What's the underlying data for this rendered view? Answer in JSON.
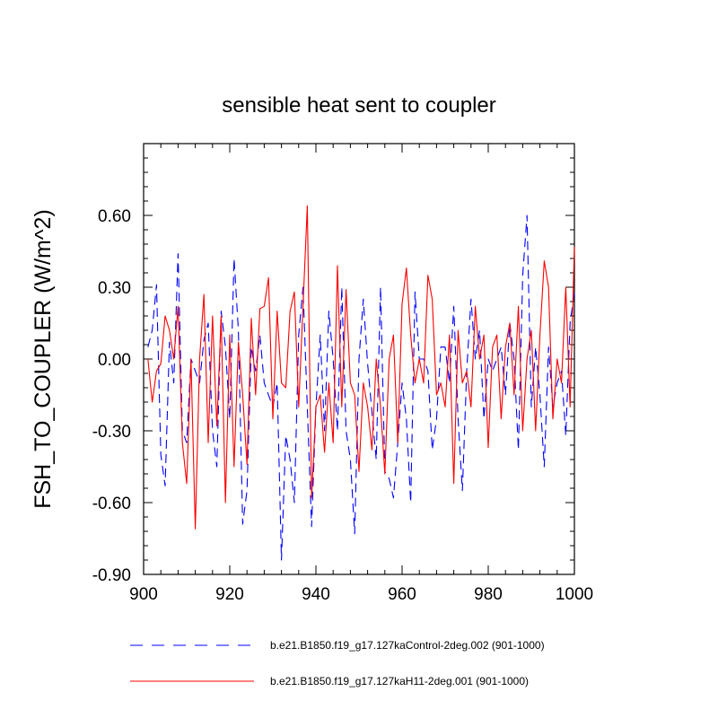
{
  "chart_data": {
    "type": "line",
    "title": "sensible heat sent to coupler",
    "xlabel": "",
    "ylabel": "FSH_TO_COUPLER  (W/m^2)",
    "xlim": [
      900,
      1000
    ],
    "ylim": [
      -0.9,
      0.9
    ],
    "xticks": [
      900,
      920,
      940,
      960,
      980,
      1000
    ],
    "xtick_labels": [
      "900",
      "920",
      "940",
      "960",
      "980",
      "1000"
    ],
    "yticks": [
      -0.9,
      -0.6,
      -0.3,
      0.0,
      0.3,
      0.6
    ],
    "ytick_labels": [
      "-0.90",
      "-0.60",
      "-0.30",
      "0.00",
      "0.30",
      "0.60"
    ],
    "grid": false,
    "legend_position": "bottom",
    "series": [
      {
        "name": "b.e21.B1850.f19_g17.127kaControl-2deg.002 (901-1000)",
        "color": "#0000ff",
        "dash": "dashed",
        "x": [
          901,
          902,
          903,
          904,
          905,
          906,
          907,
          908,
          909,
          910,
          911,
          912,
          913,
          914,
          915,
          916,
          917,
          918,
          919,
          920,
          921,
          922,
          923,
          924,
          925,
          926,
          927,
          928,
          929,
          930,
          931,
          932,
          933,
          934,
          935,
          936,
          937,
          938,
          939,
          940,
          941,
          942,
          943,
          944,
          945,
          946,
          947,
          948,
          949,
          950,
          951,
          952,
          953,
          954,
          955,
          956,
          957,
          958,
          959,
          960,
          961,
          962,
          963,
          964,
          965,
          966,
          967,
          968,
          969,
          970,
          971,
          972,
          973,
          974,
          975,
          976,
          977,
          978,
          979,
          980,
          981,
          982,
          983,
          984,
          985,
          986,
          987,
          988,
          989,
          990,
          991,
          992,
          993,
          994,
          995,
          996,
          997,
          998,
          999,
          1000
        ],
        "values": [
          0.05,
          0.12,
          0.31,
          -0.4,
          -0.53,
          0.07,
          -0.1,
          0.44,
          -0.3,
          -0.35,
          0.0,
          -0.05,
          -0.1,
          0.08,
          0.15,
          -0.3,
          -0.45,
          0.2,
          0.05,
          -0.25,
          0.42,
          0.12,
          -0.69,
          -0.55,
          0.05,
          -0.05,
          0.1,
          -0.1,
          -0.15,
          -0.2,
          -0.1,
          -0.84,
          -0.32,
          -0.42,
          -0.6,
          0.1,
          0.3,
          -0.2,
          -0.7,
          -0.2,
          0.1,
          -0.3,
          0.2,
          0.0,
          -0.3,
          0.3,
          -0.3,
          -0.42,
          -0.73,
          0.0,
          0.25,
          -0.02,
          -0.22,
          -0.42,
          0.3,
          -0.47,
          -0.5,
          -0.58,
          -0.35,
          -0.1,
          -0.25,
          -0.6,
          0.28,
          0.0,
          0.0,
          -0.05,
          -0.38,
          -0.25,
          0.05,
          0.05,
          -0.1,
          0.22,
          -0.25,
          -0.55,
          -0.05,
          0.25,
          0.0,
          0.12,
          -0.25,
          0.0,
          -0.05,
          0.0,
          0.05,
          -0.15,
          0.15,
          0.0,
          -0.38,
          0.35,
          0.6,
          -0.2,
          0.05,
          -0.15,
          -0.45,
          0.05,
          -0.2,
          -0.1,
          -0.05,
          -0.32,
          0.15,
          0.28
        ]
      },
      {
        "name": "b.e21.B1850.f19_g17.127kaH11-2deg.001 (901-1000)",
        "color": "#ff0000",
        "dash": "solid",
        "x": [
          901,
          902,
          903,
          904,
          905,
          906,
          907,
          908,
          909,
          910,
          911,
          912,
          913,
          914,
          915,
          916,
          917,
          918,
          919,
          920,
          921,
          922,
          923,
          924,
          925,
          926,
          927,
          928,
          929,
          930,
          931,
          932,
          933,
          934,
          935,
          936,
          937,
          938,
          939,
          940,
          941,
          942,
          943,
          944,
          945,
          946,
          947,
          948,
          949,
          950,
          951,
          952,
          953,
          954,
          955,
          956,
          957,
          958,
          959,
          960,
          961,
          962,
          963,
          964,
          965,
          966,
          967,
          968,
          969,
          970,
          971,
          972,
          973,
          974,
          975,
          976,
          977,
          978,
          979,
          980,
          981,
          982,
          983,
          984,
          985,
          986,
          987,
          988,
          989,
          990,
          991,
          992,
          993,
          994,
          995,
          996,
          997,
          998,
          999,
          1000
        ],
        "values": [
          0.0,
          -0.18,
          -0.05,
          -0.02,
          0.18,
          0.12,
          0.0,
          0.22,
          -0.35,
          -0.52,
          0.0,
          -0.71,
          0.0,
          0.27,
          -0.35,
          0.18,
          -0.28,
          0.18,
          -0.6,
          0.1,
          -0.45,
          0.07,
          -0.15,
          -0.44,
          0.17,
          -0.15,
          0.21,
          0.22,
          0.34,
          -0.25,
          0.2,
          -0.1,
          -0.12,
          0.2,
          0.28,
          -0.2,
          0.22,
          0.64,
          -0.58,
          -0.2,
          -0.15,
          -0.39,
          -0.1,
          -0.35,
          0.39,
          -0.2,
          0.29,
          -0.1,
          -0.15,
          -0.47,
          -0.1,
          -0.2,
          -0.38,
          0.0,
          -0.2,
          -0.48,
          0.0,
          0.1,
          -0.35,
          0.23,
          0.38,
          0.1,
          -0.1,
          0.0,
          -0.1,
          0.35,
          0.25,
          -0.15,
          -0.1,
          -0.2,
          0.1,
          -0.52,
          0.12,
          -0.1,
          -0.05,
          -0.2,
          0.22,
          0.0,
          0.1,
          -0.37,
          0.05,
          0.1,
          -0.25,
          0.05,
          0.15,
          -0.15,
          0.22,
          -0.3,
          0.0,
          0.12,
          -0.3,
          0.1,
          0.41,
          0.3,
          -0.25,
          0.0,
          -0.1,
          0.3,
          -0.2,
          0.47
        ]
      }
    ]
  }
}
